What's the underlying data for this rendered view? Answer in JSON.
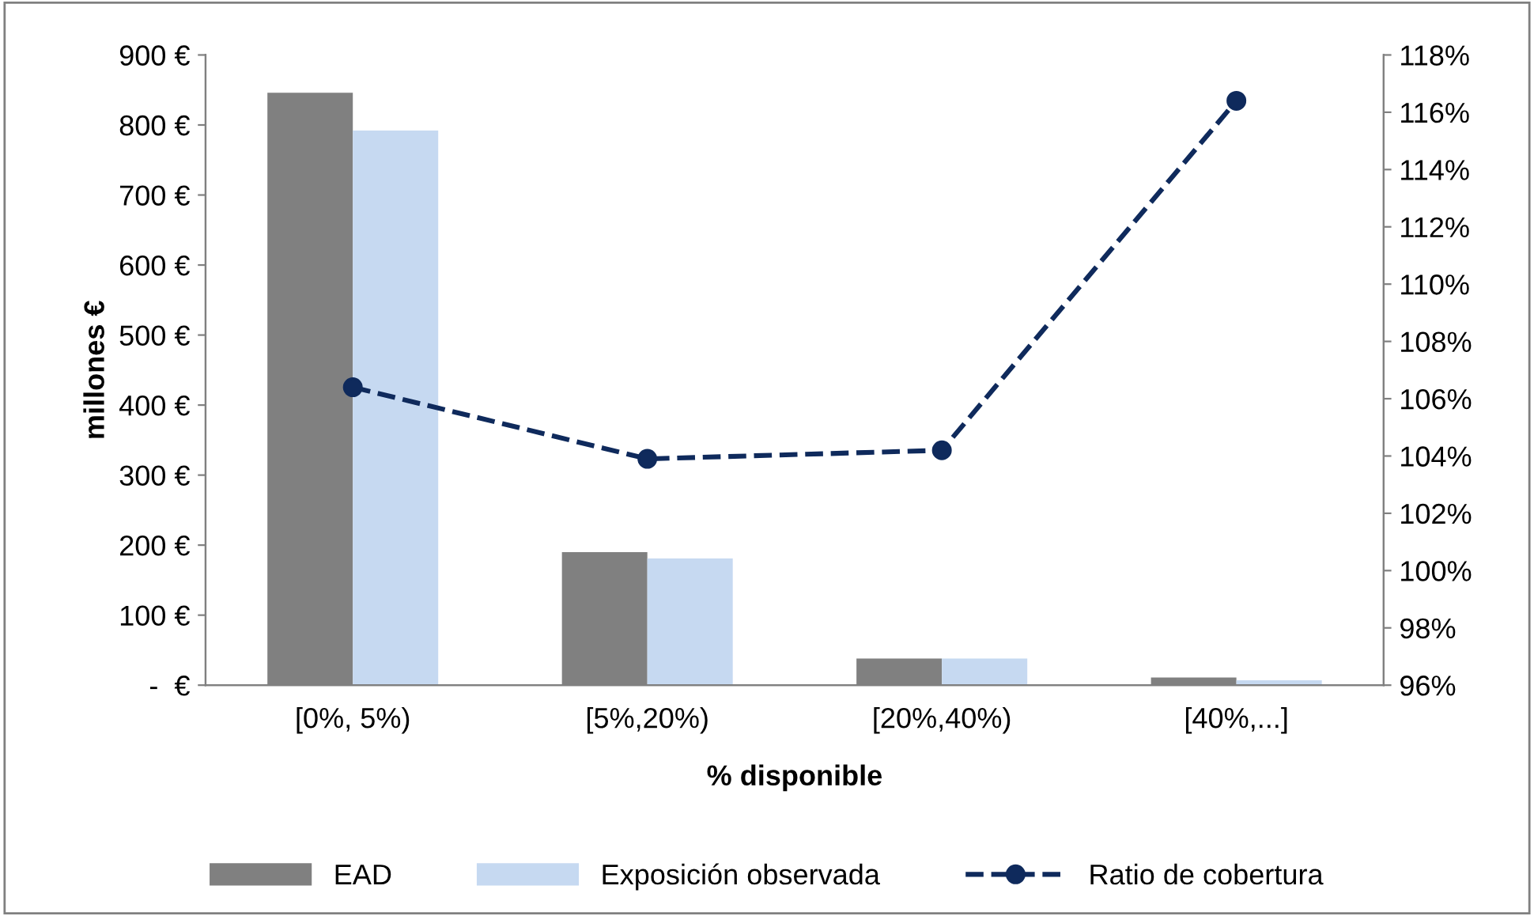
{
  "chart_data": {
    "type": "bar",
    "xlabel": "% disponible",
    "ylabel": "millones €",
    "categories": [
      "[0%, 5%)",
      "[5%,20%)",
      "[20%,40%)",
      "[40%,...]"
    ],
    "series": [
      {
        "name": "EAD",
        "color": "#808080",
        "values": [
          846,
          190,
          38,
          11
        ]
      },
      {
        "name": "Exposición observada",
        "color": "#c6d9f1",
        "values": [
          792,
          181,
          38,
          7
        ]
      },
      {
        "name": "Ratio de cobertura",
        "type": "line",
        "axis": "y2",
        "color": "#0f2a5c",
        "marker": "circle",
        "line_style": "dashed",
        "values": [
          106.4,
          103.9,
          104.2,
          116.4
        ]
      }
    ],
    "ylim": [
      0,
      900
    ],
    "yticks": [
      {
        "value": 0,
        "label": "-  €"
      },
      {
        "value": 100,
        "label": "100 €"
      },
      {
        "value": 200,
        "label": "200 €"
      },
      {
        "value": 300,
        "label": "300 €"
      },
      {
        "value": 400,
        "label": "400 €"
      },
      {
        "value": 500,
        "label": "500 €"
      },
      {
        "value": 600,
        "label": "600 €"
      },
      {
        "value": 700,
        "label": "700 €"
      },
      {
        "value": 800,
        "label": "800 €"
      },
      {
        "value": 900,
        "label": "900 €"
      }
    ],
    "y2lim": [
      96,
      118
    ],
    "y2ticks": [
      {
        "value": 96,
        "label": "96%"
      },
      {
        "value": 98,
        "label": "98%"
      },
      {
        "value": 100,
        "label": "100%"
      },
      {
        "value": 102,
        "label": "102%"
      },
      {
        "value": 104,
        "label": "104%"
      },
      {
        "value": 106,
        "label": "106%"
      },
      {
        "value": 108,
        "label": "108%"
      },
      {
        "value": 110,
        "label": "110%"
      },
      {
        "value": 112,
        "label": "112%"
      },
      {
        "value": 114,
        "label": "114%"
      },
      {
        "value": 116,
        "label": "116%"
      },
      {
        "value": 118,
        "label": "118%"
      }
    ],
    "legend": "bottom",
    "grid": false
  }
}
